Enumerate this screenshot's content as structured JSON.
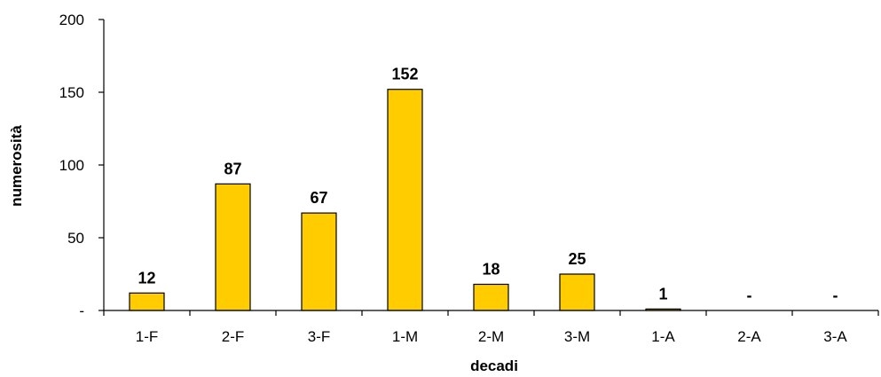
{
  "chart_data": {
    "type": "bar",
    "categories": [
      "1-F",
      "2-F",
      "3-F",
      "1-M",
      "2-M",
      "3-M",
      "1-A",
      "2-A",
      "3-A"
    ],
    "values": [
      12,
      87,
      67,
      152,
      18,
      25,
      1,
      null,
      null
    ],
    "data_labels": [
      "12",
      "87",
      "67",
      "152",
      "18",
      "25",
      "1",
      "-",
      "-"
    ],
    "xlabel": "decadi",
    "ylabel": "numerosità",
    "ylim": [
      0,
      200
    ],
    "y_ticks": [
      0,
      50,
      100,
      150,
      200
    ],
    "y_tick_labels": [
      "-",
      "50",
      "100",
      "150",
      "200"
    ],
    "bar_color": "#FFCC00",
    "bar_border_color": "#000000",
    "grid": false,
    "legend": "none"
  }
}
